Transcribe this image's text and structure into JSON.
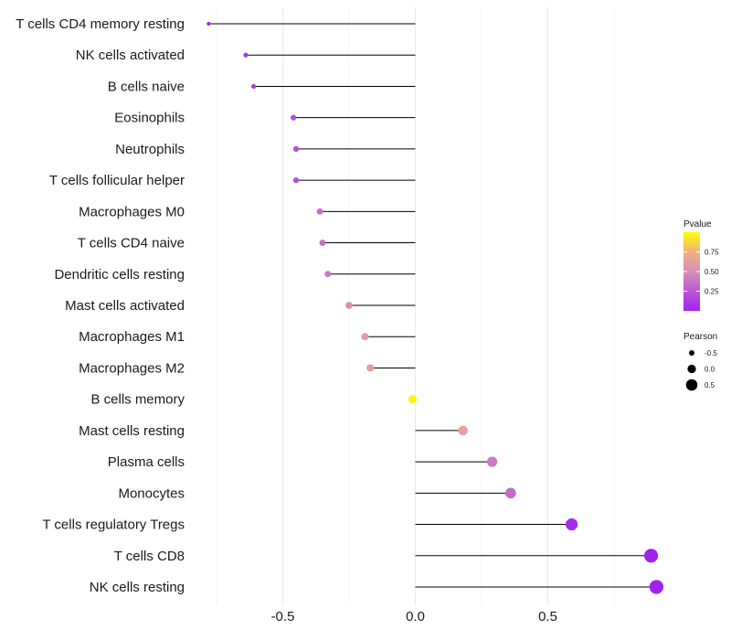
{
  "chart_data": {
    "type": "lollipop",
    "title": "",
    "xlabel": "",
    "ylabel": "",
    "xlim": [
      -0.85,
      0.95
    ],
    "xticks": [
      -0.5,
      0.0,
      0.5
    ],
    "xtick_labels": [
      "-0.5",
      "0.0",
      "0.5"
    ],
    "grid": true,
    "baseline": 0.0,
    "categories": [
      "T cells CD4 memory resting",
      "NK cells activated",
      "B cells naive",
      "Eosinophils",
      "Neutrophils",
      "T cells follicular helper",
      "Macrophages M0",
      "T cells CD4 naive",
      "Dendritic cells resting",
      "Mast cells activated",
      "Macrophages M1",
      "Macrophages M2",
      "B cells memory",
      "Mast cells resting",
      "Plasma cells",
      "Monocytes",
      "T cells regulatory  Tregs",
      "T cells CD8",
      "NK cells resting"
    ],
    "pearson": [
      -0.78,
      -0.64,
      -0.61,
      -0.46,
      -0.45,
      -0.45,
      -0.36,
      -0.35,
      -0.33,
      -0.25,
      -0.19,
      -0.17,
      -0.01,
      0.18,
      0.29,
      0.36,
      0.59,
      0.89,
      0.91
    ],
    "pvalue": [
      0.02,
      0.08,
      0.12,
      0.2,
      0.22,
      0.22,
      0.35,
      0.36,
      0.4,
      0.5,
      0.6,
      0.62,
      0.97,
      0.62,
      0.4,
      0.33,
      0.05,
      0.01,
      0.01
    ],
    "color_legend": {
      "title": "Pvalue",
      "ticks": [
        0.25,
        0.5,
        0.75
      ],
      "tick_labels": [
        "0.25",
        "0.50",
        "0.75"
      ],
      "range": [
        0.0,
        1.0
      ],
      "low_color": "#a020f0",
      "mid_color": "#e8a0a0",
      "high_color": "#ffff00"
    },
    "size_legend": {
      "title": "Pearson",
      "values": [
        -0.5,
        0.0,
        0.5
      ],
      "labels": [
        "-0.5",
        "0.0",
        "0.5"
      ]
    }
  }
}
